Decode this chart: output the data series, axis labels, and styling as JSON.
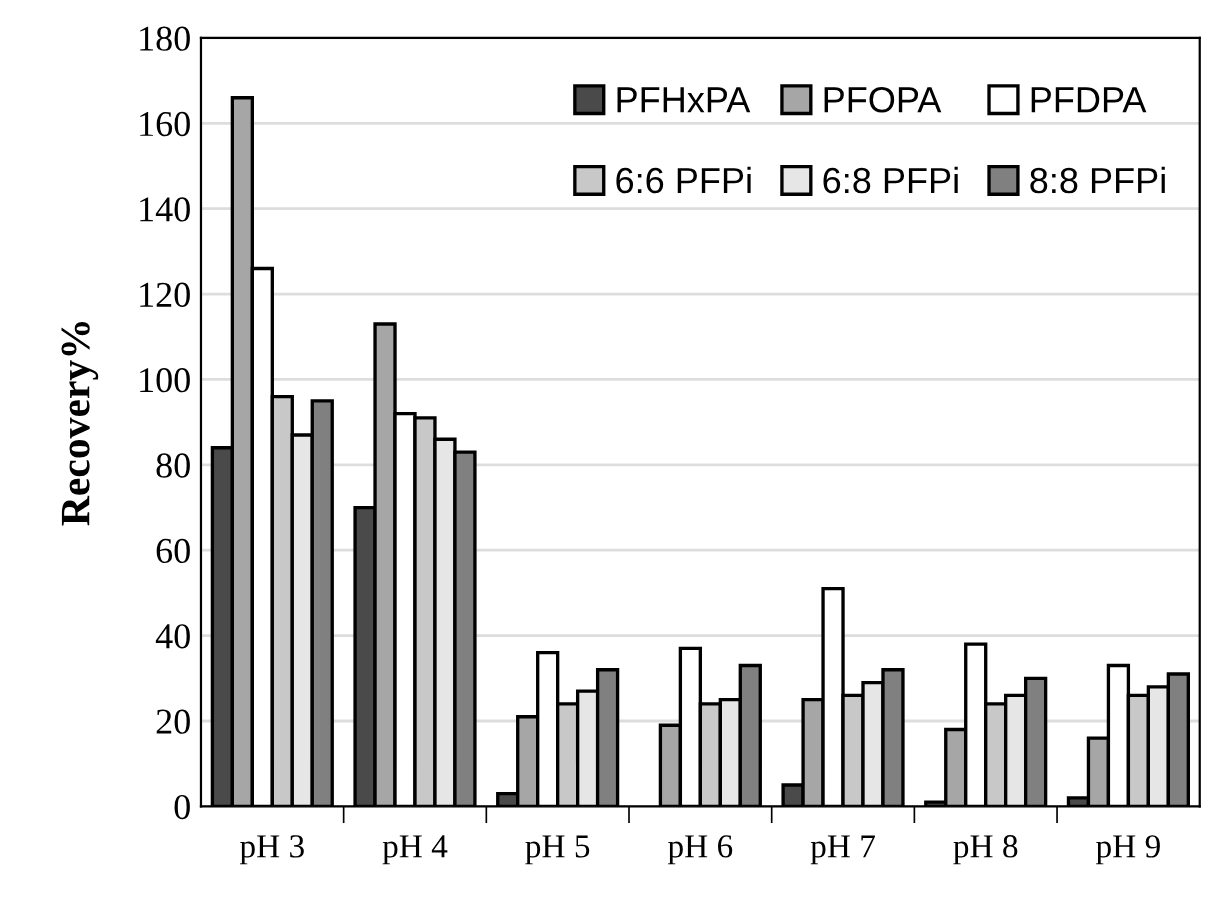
{
  "chart_data": {
    "type": "bar",
    "ylabel": "Recovery%",
    "categories": [
      "pH 3",
      "pH 4",
      "pH 5",
      "pH 6",
      "pH 7",
      "pH 8",
      "pH 9"
    ],
    "series": [
      {
        "name": "PFHxPA",
        "color": "#4a4a4a",
        "values": [
          84,
          70,
          3,
          null,
          5,
          1,
          2
        ]
      },
      {
        "name": "PFOPA",
        "color": "#a6a6a6",
        "values": [
          166,
          113,
          21,
          19,
          25,
          18,
          16
        ]
      },
      {
        "name": "PFDPA",
        "color": "#ffffff",
        "values": [
          126,
          92,
          36,
          37,
          51,
          38,
          33
        ]
      },
      {
        "name": "6:6 PFPi",
        "color": "#c8c8c8",
        "values": [
          96,
          91,
          24,
          24,
          26,
          24,
          26
        ]
      },
      {
        "name": "6:8 PFPi",
        "color": "#e6e6e6",
        "values": [
          87,
          86,
          27,
          25,
          29,
          26,
          28
        ]
      },
      {
        "name": "8:8 PFPi",
        "color": "#808080",
        "values": [
          95,
          83,
          32,
          33,
          32,
          30,
          31
        ]
      }
    ],
    "ylim": [
      0,
      180
    ],
    "yticks": [
      0,
      20,
      40,
      60,
      80,
      100,
      120,
      140,
      160,
      180
    ],
    "grid": "y",
    "legend": "top right"
  }
}
